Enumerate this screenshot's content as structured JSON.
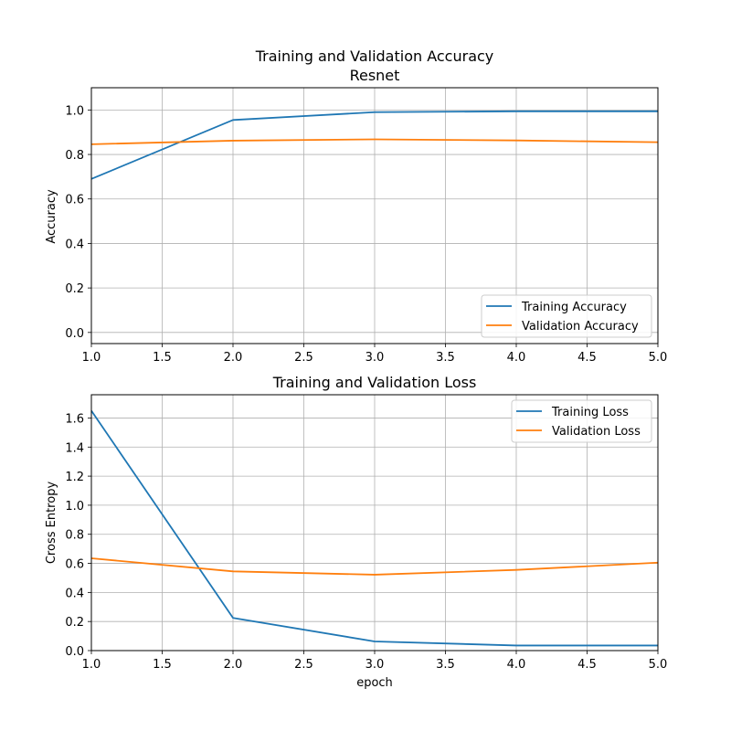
{
  "colors": {
    "training": "#1f77b4",
    "validation": "#ff7f0e",
    "grid": "#b0b0b0"
  },
  "chart_data": [
    {
      "type": "line",
      "title": "Training and Validation Accuracy\nResnet",
      "title_lines": [
        "Training and Validation Accuracy",
        "Resnet"
      ],
      "xlabel": "",
      "ylabel": "Accuracy",
      "xlim": [
        1.0,
        5.0
      ],
      "ylim": [
        -0.05,
        1.1
      ],
      "xticks": [
        "1.0",
        "1.5",
        "2.0",
        "2.5",
        "3.0",
        "3.5",
        "4.0",
        "4.5",
        "5.0"
      ],
      "yticks": [
        "0.0",
        "0.2",
        "0.4",
        "0.6",
        "0.8",
        "1.0"
      ],
      "grid": true,
      "legend_position": "lower-right",
      "x": [
        1,
        2,
        3,
        4,
        5
      ],
      "series": [
        {
          "name": "Training Accuracy",
          "color": "#1f77b4",
          "values": [
            0.69,
            0.955,
            0.99,
            0.994,
            0.994
          ]
        },
        {
          "name": "Validation Accuracy",
          "color": "#ff7f0e",
          "values": [
            0.846,
            0.862,
            0.868,
            0.863,
            0.855
          ]
        }
      ]
    },
    {
      "type": "line",
      "title": "Training and Validation Loss",
      "title_lines": [
        "Training and Validation Loss"
      ],
      "xlabel": "epoch",
      "ylabel": "Cross Entropy",
      "xlim": [
        1.0,
        5.0
      ],
      "ylim": [
        0.0,
        1.76
      ],
      "xticks": [
        "1.0",
        "1.5",
        "2.0",
        "2.5",
        "3.0",
        "3.5",
        "4.0",
        "4.5",
        "5.0"
      ],
      "yticks": [
        "0.0",
        "0.2",
        "0.4",
        "0.6",
        "0.8",
        "1.0",
        "1.2",
        "1.4",
        "1.6"
      ],
      "grid": true,
      "legend_position": "upper-right",
      "x": [
        1,
        2,
        3,
        4,
        5
      ],
      "series": [
        {
          "name": "Training Loss",
          "color": "#1f77b4",
          "values": [
            1.65,
            0.225,
            0.063,
            0.035,
            0.035
          ]
        },
        {
          "name": "Validation Loss",
          "color": "#ff7f0e",
          "values": [
            0.635,
            0.545,
            0.522,
            0.555,
            0.605
          ]
        }
      ]
    }
  ]
}
